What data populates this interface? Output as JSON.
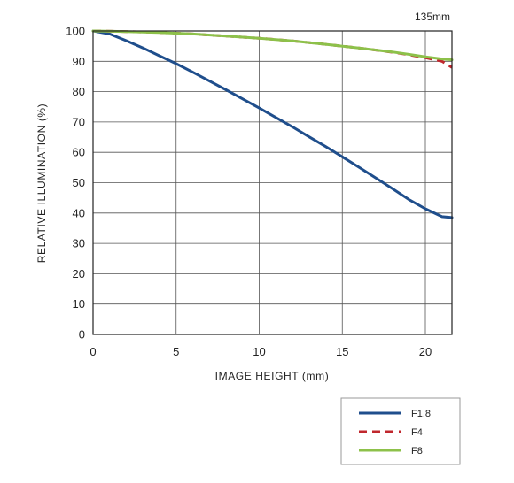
{
  "chart_data": {
    "type": "line",
    "title": "135mm",
    "xlabel": "IMAGE HEIGHT (mm)",
    "ylabel": "RELATIVE ILLUMINATION  (%)",
    "xlim": [
      0,
      21.6
    ],
    "ylim": [
      0,
      100
    ],
    "xticks": [
      0,
      5,
      10,
      15,
      20
    ],
    "yticks": [
      0,
      10,
      20,
      30,
      40,
      50,
      60,
      70,
      80,
      90,
      100
    ],
    "grid": true,
    "legend_position": "bottom-right",
    "series": [
      {
        "name": "F1.8",
        "color": "#1f4e8c",
        "dash": "solid",
        "x": [
          0,
          1,
          2,
          3,
          4,
          5,
          6,
          7,
          8,
          9,
          10,
          11,
          12,
          13,
          14,
          15,
          16,
          17,
          18,
          19,
          20,
          21,
          21.6
        ],
        "y": [
          100,
          99,
          96.8,
          94.4,
          91.8,
          89.2,
          86.4,
          83.5,
          80.6,
          77.6,
          74.6,
          71.5,
          68.4,
          65.1,
          61.9,
          58.5,
          55.1,
          51.6,
          48.1,
          44.5,
          41.4,
          38.8,
          38.5
        ]
      },
      {
        "name": "F4",
        "color": "#c0272d",
        "dash": "dashed",
        "x": [
          0,
          2,
          4,
          6,
          8,
          10,
          12,
          14,
          16,
          18,
          19,
          20,
          20.5,
          21,
          21.3,
          21.6
        ],
        "y": [
          100,
          99.8,
          99.5,
          99.0,
          98.3,
          97.6,
          96.7,
          95.6,
          94.4,
          93.0,
          92.2,
          91.2,
          90.6,
          90.0,
          89.0,
          88.0
        ]
      },
      {
        "name": "F8",
        "color": "#8dc14a",
        "dash": "solid",
        "x": [
          0,
          2,
          4,
          6,
          8,
          10,
          12,
          14,
          16,
          18,
          19,
          20,
          21,
          21.6
        ],
        "y": [
          100,
          99.8,
          99.5,
          99.0,
          98.3,
          97.6,
          96.7,
          95.6,
          94.4,
          93.1,
          92.3,
          91.5,
          90.8,
          90.5
        ]
      }
    ]
  }
}
